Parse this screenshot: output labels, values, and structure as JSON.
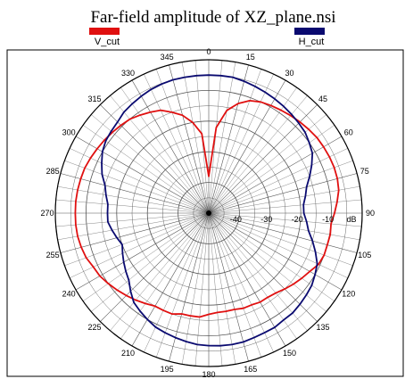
{
  "chart_data": {
    "type": "polar-line",
    "title": "Far-field amplitude of XZ_plane.nsi",
    "radial_unit_label": "dB",
    "radial_ticks": [
      "-40",
      "-30",
      "-20",
      "-10"
    ],
    "radial_range_db": [
      -50,
      0
    ],
    "angle_ticks": [
      "0",
      "15",
      "30",
      "45",
      "60",
      "75",
      "90",
      "105",
      "120",
      "135",
      "150",
      "165",
      "180",
      "195",
      "210",
      "225",
      "240",
      "255",
      "270",
      "285",
      "300",
      "315",
      "330",
      "345"
    ],
    "angle_direction": "clockwise, 0 at top",
    "grid": true,
    "legend_position": "top",
    "series": [
      {
        "name": "V_cut",
        "color": "#e01010",
        "angles_deg": [
          0,
          5,
          10,
          15,
          20,
          25,
          30,
          35,
          40,
          45,
          50,
          55,
          60,
          65,
          70,
          75,
          80,
          85,
          90,
          95,
          100,
          105,
          110,
          115,
          120,
          125,
          130,
          135,
          140,
          145,
          150,
          155,
          160,
          165,
          170,
          175,
          180,
          185,
          190,
          195,
          200,
          205,
          210,
          215,
          220,
          225,
          230,
          235,
          240,
          245,
          250,
          255,
          260,
          265,
          270,
          275,
          280,
          285,
          290,
          295,
          300,
          305,
          310,
          315,
          320,
          325,
          330,
          335,
          340,
          345,
          350,
          355
        ],
        "values_db": [
          -38,
          -22,
          -16,
          -13,
          -11,
          -10,
          -9.5,
          -9,
          -8.5,
          -8,
          -7.5,
          -7,
          -6.8,
          -6.6,
          -6.5,
          -6.6,
          -7,
          -8,
          -9,
          -10,
          -9.8,
          -10,
          -10,
          -10.5,
          -12,
          -13,
          -14,
          -15,
          -16,
          -16.5,
          -16.5,
          -17,
          -17,
          -17.5,
          -17.5,
          -17.5,
          -17,
          -16,
          -16,
          -16,
          -15,
          -15,
          -15,
          -14,
          -13,
          -12,
          -11,
          -10,
          -9,
          -8.5,
          -7.5,
          -7,
          -6.6,
          -6.5,
          -6.5,
          -6.5,
          -6.6,
          -6.8,
          -7,
          -7.5,
          -8,
          -8.5,
          -9,
          -9.5,
          -10,
          -11,
          -12,
          -13,
          -15,
          -17,
          -20,
          -24
        ]
      },
      {
        "name": "H_cut",
        "color": "#0a0a70",
        "angles_deg": [
          0,
          5,
          10,
          15,
          20,
          25,
          30,
          35,
          40,
          45,
          50,
          55,
          60,
          65,
          70,
          75,
          80,
          85,
          90,
          95,
          100,
          105,
          110,
          115,
          120,
          125,
          130,
          135,
          140,
          145,
          150,
          155,
          160,
          165,
          170,
          175,
          180,
          185,
          190,
          195,
          200,
          205,
          210,
          215,
          220,
          225,
          230,
          235,
          240,
          245,
          250,
          255,
          260,
          265,
          270,
          275,
          280,
          285,
          290,
          295,
          300,
          305,
          310,
          315,
          320,
          325,
          330,
          335,
          340,
          345,
          350,
          355
        ],
        "values_db": [
          -5,
          -5,
          -5,
          -5.5,
          -6,
          -6.5,
          -7,
          -7.5,
          -8,
          -8.5,
          -9,
          -10,
          -11,
          -13,
          -15,
          -17,
          -18,
          -19,
          -19,
          -18,
          -17,
          -15,
          -13,
          -11,
          -10,
          -9,
          -8.5,
          -8,
          -7.5,
          -7.5,
          -7,
          -7,
          -6.8,
          -6.5,
          -6.5,
          -6.6,
          -6.8,
          -7,
          -7.5,
          -8,
          -8.5,
          -9,
          -10,
          -11,
          -12,
          -14,
          -16,
          -17,
          -18,
          -19,
          -20,
          -19,
          -18,
          -17,
          -17,
          -17,
          -16,
          -15,
          -13,
          -11.5,
          -10,
          -9,
          -8.5,
          -8,
          -7,
          -6.5,
          -6,
          -5.5,
          -5.2,
          -5,
          -5,
          -5
        ]
      }
    ]
  }
}
